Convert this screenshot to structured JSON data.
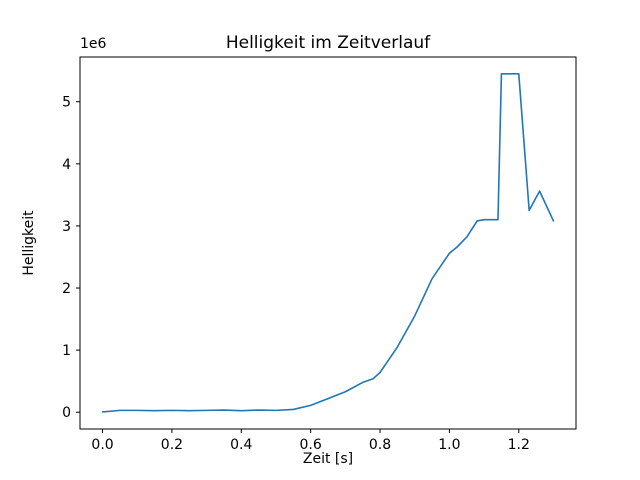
{
  "window": {
    "background": "#ffffff"
  },
  "chart_data": {
    "type": "line",
    "title": "Helligkeit im Zeitverlauf",
    "xlabel": "Zeit [s]",
    "ylabel": "Helligkeit",
    "y_offset_label": "1e6",
    "line_color": "#1f77b4",
    "axis_color": "#000000",
    "grid": false,
    "legend": "none",
    "xlim": [
      -0.065,
      1.365
    ],
    "ylim": [
      -270000,
      5720000
    ],
    "xticks": [
      0.0,
      0.2,
      0.4,
      0.6,
      0.8,
      1.0,
      1.2
    ],
    "xtick_labels": [
      "0.0",
      "0.2",
      "0.4",
      "0.6",
      "0.8",
      "1.0",
      "1.2"
    ],
    "yticks": [
      0,
      1000000,
      2000000,
      3000000,
      4000000,
      5000000
    ],
    "ytick_labels": [
      "0",
      "1",
      "2",
      "3",
      "4",
      "5"
    ],
    "x": [
      0.0,
      0.05,
      0.1,
      0.15,
      0.2,
      0.25,
      0.3,
      0.35,
      0.4,
      0.45,
      0.5,
      0.55,
      0.6,
      0.65,
      0.7,
      0.75,
      0.78,
      0.8,
      0.85,
      0.9,
      0.95,
      1.0,
      1.02,
      1.05,
      1.08,
      1.1,
      1.14,
      1.15,
      1.2,
      1.23,
      1.26,
      1.3
    ],
    "y": [
      5000,
      30000,
      30000,
      25000,
      30000,
      25000,
      30000,
      35000,
      25000,
      35000,
      30000,
      45000,
      110000,
      220000,
      330000,
      480000,
      540000,
      640000,
      1050000,
      1550000,
      2150000,
      2560000,
      2650000,
      2820000,
      3080000,
      3100000,
      3100000,
      5450000,
      5450000,
      3250000,
      3560000,
      3080000
    ]
  }
}
